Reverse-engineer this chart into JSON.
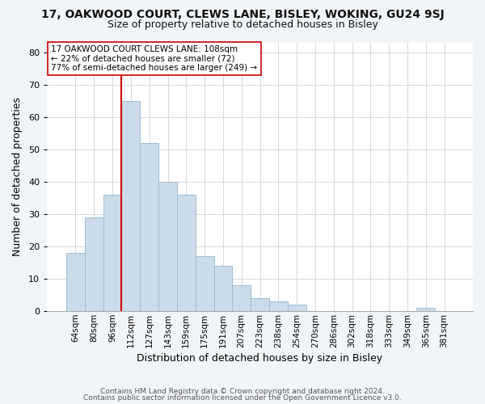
{
  "title_line1": "17, OAKWOOD COURT, CLEWS LANE, BISLEY, WOKING, GU24 9SJ",
  "title_line2": "Size of property relative to detached houses in Bisley",
  "xlabel": "Distribution of detached houses by size in Bisley",
  "ylabel": "Number of detached properties",
  "footer_line1": "Contains HM Land Registry data © Crown copyright and database right 2024.",
  "footer_line2": "Contains public sector information licensed under the Open Government Licence v3.0.",
  "bar_labels": [
    "64sqm",
    "80sqm",
    "96sqm",
    "112sqm",
    "127sqm",
    "143sqm",
    "159sqm",
    "175sqm",
    "191sqm",
    "207sqm",
    "223sqm",
    "238sqm",
    "254sqm",
    "270sqm",
    "286sqm",
    "302sqm",
    "318sqm",
    "333sqm",
    "349sqm",
    "365sqm",
    "381sqm"
  ],
  "bar_values": [
    18,
    29,
    36,
    65,
    52,
    40,
    36,
    17,
    14,
    8,
    4,
    3,
    2,
    0,
    0,
    0,
    0,
    0,
    0,
    1,
    0
  ],
  "bar_color": "#ccdbe9",
  "bar_edge_color": "#9fbdd4",
  "vline_color": "#cc0000",
  "vline_x_index": 2.5,
  "annotation_line1": "17 OAKWOOD COURT CLEWS LANE: 108sqm",
  "annotation_line2": "← 22% of detached houses are smaller (72)",
  "annotation_line3": "77% of semi-detached houses are larger (249) →",
  "ylim": [
    0,
    83
  ],
  "yticks": [
    0,
    10,
    20,
    30,
    40,
    50,
    60,
    70,
    80
  ],
  "bg_color": "#f2f5f8",
  "plot_bg_color": "#ffffff",
  "grid_color": "#d0d8e0",
  "title1_fontsize": 10,
  "title2_fontsize": 9,
  "xlabel_fontsize": 9,
  "ylabel_fontsize": 9,
  "tick_fontsize": 7.5,
  "annot_fontsize": 7.5,
  "footer_fontsize": 6.5
}
